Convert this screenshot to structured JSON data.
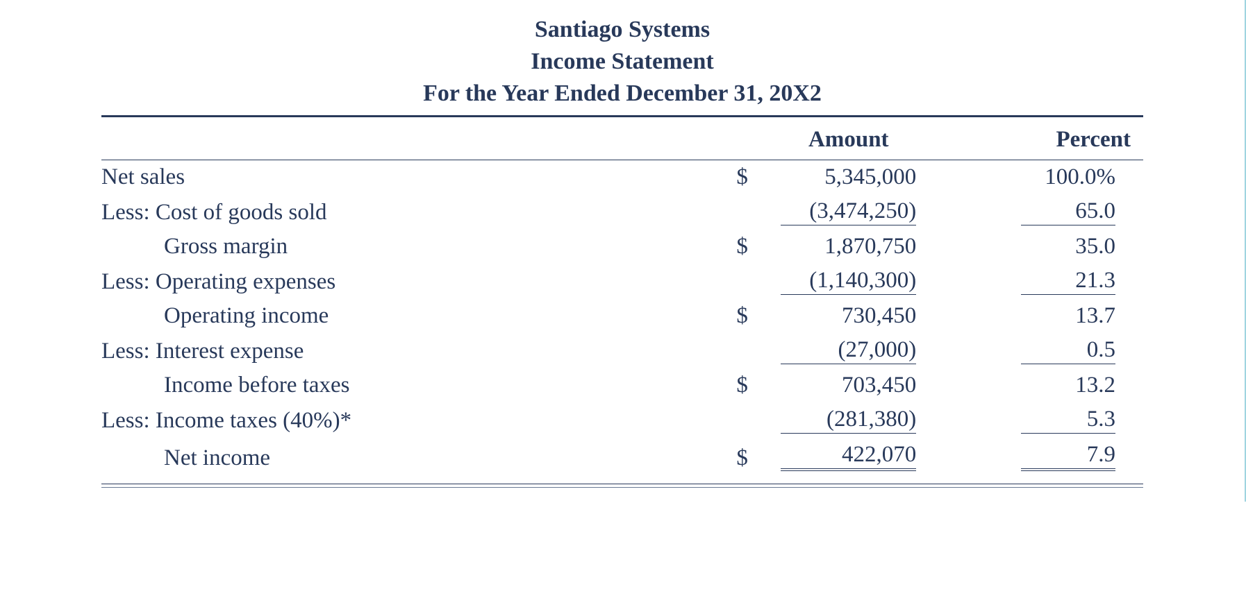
{
  "colors": {
    "text": "#28395a",
    "background": "#ffffff",
    "right_border": "#9fd4e0"
  },
  "typography": {
    "font_family": "Garamond / Times-like serif",
    "header_fontsize_pt": 26,
    "body_fontsize_pt": 25
  },
  "header": {
    "company": "Santiago Systems",
    "title": "Income Statement",
    "period": "For the Year Ended December 31, 20X2"
  },
  "columns": {
    "amount": "Amount",
    "percent": "Percent"
  },
  "rows": [
    {
      "label": "Net sales",
      "indent": 0,
      "currency": "$",
      "amount": "5,345,000",
      "amount_style": "plain",
      "percent": "100.0%",
      "percent_style": "plain"
    },
    {
      "label": "Less: Cost of goods sold",
      "indent": 0,
      "currency": "",
      "amount": "(3,474,250)",
      "amount_style": "ul",
      "percent": "65.0",
      "percent_style": "ul"
    },
    {
      "label": "Gross margin",
      "indent": 1,
      "currency": "$",
      "amount": "1,870,750",
      "amount_style": "plain",
      "percent": "35.0",
      "percent_style": "plain"
    },
    {
      "label": "Less: Operating expenses",
      "indent": 0,
      "currency": "",
      "amount": "(1,140,300)",
      "amount_style": "ul",
      "percent": "21.3",
      "percent_style": "ul"
    },
    {
      "label": "Operating income",
      "indent": 1,
      "currency": "$",
      "amount": "730,450",
      "amount_style": "plain",
      "percent": "13.7",
      "percent_style": "plain"
    },
    {
      "label": "Less: Interest expense",
      "indent": 0,
      "currency": "",
      "amount": "(27,000)",
      "amount_style": "ul",
      "percent": "0.5",
      "percent_style": "ul"
    },
    {
      "label": "Income before taxes",
      "indent": 1,
      "currency": "$",
      "amount": "703,450",
      "amount_style": "plain",
      "percent": "13.2",
      "percent_style": "plain"
    },
    {
      "label": "Less: Income taxes (40%)*",
      "indent": 0,
      "currency": "",
      "amount": "(281,380)",
      "amount_style": "ul",
      "percent": "5.3",
      "percent_style": "ul"
    },
    {
      "label": "Net income",
      "indent": 1,
      "currency": "$",
      "amount": "422,070",
      "amount_style": "dbl",
      "percent": "7.9",
      "percent_style": "dbl"
    }
  ]
}
